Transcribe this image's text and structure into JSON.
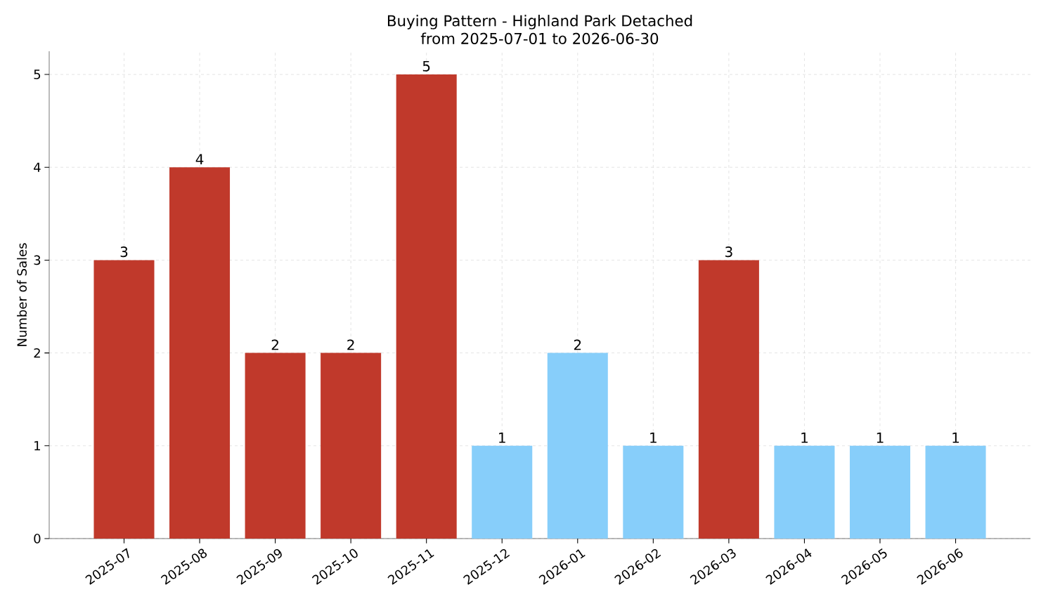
{
  "chart_data": {
    "type": "bar",
    "title": "Buying Pattern - Highland Park Detached\nfrom 2025-07-01 to 2026-06-30",
    "ylabel": "Number of Sales",
    "categories": [
      "2025-07",
      "2025-08",
      "2025-09",
      "2025-10",
      "2025-11",
      "2025-12",
      "2026-01",
      "2026-02",
      "2026-03",
      "2026-04",
      "2026-05",
      "2026-06"
    ],
    "values": [
      3,
      4,
      2,
      2,
      5,
      1,
      2,
      1,
      3,
      1,
      1,
      1
    ],
    "colors": [
      "#c0392b",
      "#c0392b",
      "#c0392b",
      "#c0392b",
      "#c0392b",
      "#87cefa",
      "#87cefa",
      "#87cefa",
      "#c0392b",
      "#87cefa",
      "#87cefa",
      "#87cefa"
    ],
    "ylim": [
      0,
      5.25
    ],
    "yticks": [
      0,
      1,
      2,
      3,
      4,
      5
    ],
    "grid": true,
    "data_labels": true
  }
}
